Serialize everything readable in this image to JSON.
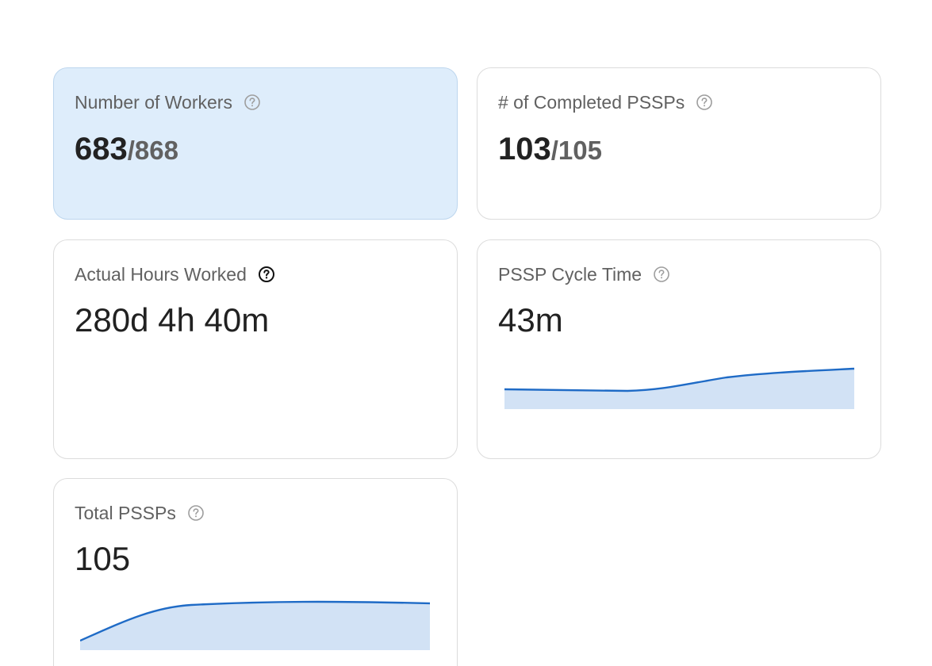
{
  "cards": {
    "workers": {
      "title": "Number of Workers",
      "value": "683",
      "total": "/868",
      "selected": true
    },
    "completed": {
      "title": "# of Completed PSSPs",
      "value": "103",
      "total": "/105"
    },
    "hours": {
      "title": "Actual Hours Worked",
      "value": "280d 4h 40m"
    },
    "cycle": {
      "title": "PSSP Cycle Time",
      "value": "43m"
    },
    "total": {
      "title": "Total PSSPs",
      "value": "105"
    }
  },
  "icons": {
    "help": "help-circle-icon"
  },
  "colors": {
    "accent_line": "#1f6bc6",
    "accent_fill": "#d2e2f5",
    "selected_card_bg": "#deedfb"
  }
}
